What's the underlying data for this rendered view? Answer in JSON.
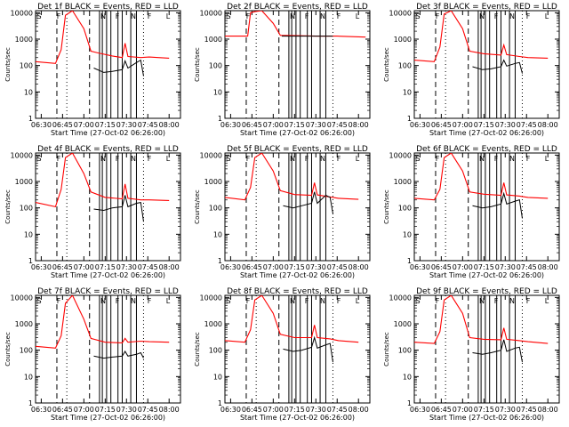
{
  "chart_data": {
    "type": "line",
    "xlabel": "Start Time (27-Oct-02 06:26:00)",
    "ylabel": "Counts/sec",
    "x_ticks": [
      "06:30",
      "06:45",
      "07:00",
      "07:15",
      "07:30",
      "07:45",
      "08:00"
    ],
    "y_ticks": [
      "1",
      "10",
      "100",
      "1000",
      "10000"
    ],
    "xlim": [
      "06:26",
      "08:08"
    ],
    "ylim": [
      1,
      12000
    ],
    "y_scale": "log",
    "panel_marks": [
      "S",
      "F",
      "N",
      "F",
      "N",
      "F",
      "L"
    ],
    "colors": {
      "events": "#000000",
      "lld": "#ff0000",
      "axis": "#000000",
      "background": "#ffffff"
    },
    "solid_markers": [
      "07:11",
      "07:13",
      "07:16",
      "07:19",
      "07:24",
      "07:27",
      "07:33",
      "07:37"
    ],
    "dashed_markers": [
      "06:41",
      "07:04"
    ],
    "dotted_markers": [
      "06:48",
      "07:42"
    ],
    "panels": [
      {
        "title": "Det 1f  BLACK = Events, RED = LLD",
        "lld": [
          [
            "06:26",
            140
          ],
          [
            "06:40",
            120
          ],
          [
            "06:44",
            400
          ],
          [
            "06:47",
            8000
          ],
          [
            "06:52",
            12000
          ],
          [
            "07:00",
            2500
          ],
          [
            "07:05",
            350
          ],
          [
            "07:10",
            300
          ],
          [
            "07:20",
            230
          ],
          [
            "07:27",
            200
          ],
          [
            "07:29",
            700
          ],
          [
            "07:31",
            220
          ],
          [
            "07:40",
            200
          ],
          [
            "07:46",
            210
          ],
          [
            "08:00",
            190
          ]
        ],
        "events": [
          [
            "07:07",
            80
          ],
          [
            "07:14",
            55
          ],
          [
            "07:20",
            60
          ],
          [
            "07:27",
            70
          ],
          [
            "07:29",
            150
          ],
          [
            "07:31",
            80
          ],
          [
            "07:37",
            130
          ],
          [
            "07:40",
            160
          ],
          [
            "07:42",
            40
          ]
        ]
      },
      {
        "title": "Det 2f  BLACK = Events, RED = LLD",
        "lld": [
          [
            "06:26",
            1300
          ],
          [
            "06:42",
            1300
          ],
          [
            "06:44",
            10000
          ],
          [
            "06:47",
            11000
          ],
          [
            "06:52",
            12000
          ],
          [
            "07:00",
            4000
          ],
          [
            "07:05",
            1400
          ],
          [
            "07:30",
            1300
          ],
          [
            "07:45",
            1300
          ],
          [
            "08:05",
            1200
          ]
        ],
        "events": [
          [
            "07:06",
            1300
          ],
          [
            "07:42",
            1300
          ]
        ]
      },
      {
        "title": "Det 3f  BLACK = Events, RED = LLD",
        "lld": [
          [
            "06:26",
            160
          ],
          [
            "06:40",
            140
          ],
          [
            "06:44",
            500
          ],
          [
            "06:47",
            9000
          ],
          [
            "06:52",
            12000
          ],
          [
            "07:00",
            2500
          ],
          [
            "07:05",
            350
          ],
          [
            "07:15",
            280
          ],
          [
            "07:27",
            250
          ],
          [
            "07:29",
            600
          ],
          [
            "07:31",
            260
          ],
          [
            "07:40",
            220
          ],
          [
            "07:46",
            200
          ],
          [
            "08:00",
            190
          ]
        ],
        "events": [
          [
            "07:07",
            90
          ],
          [
            "07:14",
            70
          ],
          [
            "07:20",
            75
          ],
          [
            "07:27",
            90
          ],
          [
            "07:29",
            160
          ],
          [
            "07:31",
            95
          ],
          [
            "07:37",
            120
          ],
          [
            "07:40",
            130
          ],
          [
            "07:42",
            50
          ]
        ]
      },
      {
        "title": "Det 4f  BLACK = Events, RED = LLD",
        "lld": [
          [
            "06:26",
            160
          ],
          [
            "06:40",
            110
          ],
          [
            "06:44",
            500
          ],
          [
            "06:47",
            8000
          ],
          [
            "06:52",
            12000
          ],
          [
            "07:00",
            2000
          ],
          [
            "07:05",
            400
          ],
          [
            "07:15",
            250
          ],
          [
            "07:27",
            220
          ],
          [
            "07:29",
            800
          ],
          [
            "07:31",
            230
          ],
          [
            "07:40",
            200
          ],
          [
            "07:46",
            200
          ],
          [
            "08:00",
            190
          ]
        ],
        "events": [
          [
            "07:07",
            90
          ],
          [
            "07:14",
            80
          ],
          [
            "07:20",
            100
          ],
          [
            "07:27",
            110
          ],
          [
            "07:29",
            300
          ],
          [
            "07:31",
            110
          ],
          [
            "07:37",
            150
          ],
          [
            "07:40",
            160
          ],
          [
            "07:42",
            30
          ]
        ]
      },
      {
        "title": "Det 5f  BLACK = Events, RED = LLD",
        "lld": [
          [
            "06:26",
            250
          ],
          [
            "06:40",
            200
          ],
          [
            "06:44",
            600
          ],
          [
            "06:47",
            8000
          ],
          [
            "06:52",
            12000
          ],
          [
            "07:00",
            2500
          ],
          [
            "07:05",
            450
          ],
          [
            "07:15",
            320
          ],
          [
            "07:27",
            300
          ],
          [
            "07:29",
            900
          ],
          [
            "07:31",
            310
          ],
          [
            "07:40",
            260
          ],
          [
            "07:46",
            230
          ],
          [
            "08:00",
            210
          ]
        ],
        "events": [
          [
            "07:07",
            120
          ],
          [
            "07:14",
            100
          ],
          [
            "07:20",
            120
          ],
          [
            "07:27",
            150
          ],
          [
            "07:29",
            400
          ],
          [
            "07:31",
            150
          ],
          [
            "07:37",
            300
          ],
          [
            "07:40",
            250
          ],
          [
            "07:42",
            60
          ]
        ]
      },
      {
        "title": "Det 6f  BLACK = Events, RED = LLD",
        "lld": [
          [
            "06:26",
            230
          ],
          [
            "06:40",
            200
          ],
          [
            "06:44",
            500
          ],
          [
            "06:47",
            8000
          ],
          [
            "06:52",
            12000
          ],
          [
            "07:00",
            2500
          ],
          [
            "07:05",
            400
          ],
          [
            "07:15",
            330
          ],
          [
            "07:27",
            300
          ],
          [
            "07:29",
            900
          ],
          [
            "07:31",
            310
          ],
          [
            "07:40",
            280
          ],
          [
            "07:46",
            250
          ],
          [
            "08:00",
            230
          ]
        ],
        "events": [
          [
            "07:07",
            120
          ],
          [
            "07:14",
            100
          ],
          [
            "07:20",
            110
          ],
          [
            "07:27",
            140
          ],
          [
            "07:29",
            350
          ],
          [
            "07:31",
            140
          ],
          [
            "07:37",
            180
          ],
          [
            "07:40",
            200
          ],
          [
            "07:42",
            40
          ]
        ]
      },
      {
        "title": "Det 7f  BLACK = Events, RED = LLD",
        "lld": [
          [
            "06:26",
            140
          ],
          [
            "06:40",
            120
          ],
          [
            "06:44",
            350
          ],
          [
            "06:47",
            6000
          ],
          [
            "06:52",
            12000
          ],
          [
            "07:00",
            1500
          ],
          [
            "07:05",
            280
          ],
          [
            "07:15",
            200
          ],
          [
            "07:27",
            190
          ],
          [
            "07:29",
            280
          ],
          [
            "07:31",
            200
          ],
          [
            "07:40",
            220
          ],
          [
            "07:46",
            210
          ],
          [
            "08:00",
            200
          ]
        ],
        "events": [
          [
            "07:07",
            60
          ],
          [
            "07:14",
            50
          ],
          [
            "07:20",
            55
          ],
          [
            "07:27",
            60
          ],
          [
            "07:29",
            90
          ],
          [
            "07:31",
            60
          ],
          [
            "07:37",
            70
          ],
          [
            "07:40",
            80
          ],
          [
            "07:42",
            50
          ]
        ]
      },
      {
        "title": "Det 8f  BLACK = Events, RED = LLD",
        "lld": [
          [
            "06:26",
            230
          ],
          [
            "06:40",
            200
          ],
          [
            "06:44",
            600
          ],
          [
            "06:47",
            8000
          ],
          [
            "06:52",
            12000
          ],
          [
            "07:00",
            2500
          ],
          [
            "07:05",
            400
          ],
          [
            "07:15",
            300
          ],
          [
            "07:27",
            300
          ],
          [
            "07:29",
            900
          ],
          [
            "07:31",
            300
          ],
          [
            "07:40",
            270
          ],
          [
            "07:46",
            230
          ],
          [
            "08:00",
            200
          ]
        ],
        "events": [
          [
            "07:07",
            110
          ],
          [
            "07:14",
            90
          ],
          [
            "07:20",
            100
          ],
          [
            "07:27",
            130
          ],
          [
            "07:29",
            300
          ],
          [
            "07:31",
            120
          ],
          [
            "07:37",
            160
          ],
          [
            "07:40",
            180
          ],
          [
            "07:42",
            35
          ]
        ]
      },
      {
        "title": "Det 9f  BLACK = Events, RED = LLD",
        "lld": [
          [
            "06:26",
            200
          ],
          [
            "06:40",
            180
          ],
          [
            "06:44",
            500
          ],
          [
            "06:47",
            8000
          ],
          [
            "06:52",
            12000
          ],
          [
            "07:00",
            2500
          ],
          [
            "07:05",
            300
          ],
          [
            "07:15",
            260
          ],
          [
            "07:27",
            250
          ],
          [
            "07:29",
            700
          ],
          [
            "07:31",
            260
          ],
          [
            "07:40",
            230
          ],
          [
            "07:46",
            210
          ],
          [
            "08:00",
            180
          ]
        ],
        "events": [
          [
            "07:07",
            80
          ],
          [
            "07:14",
            70
          ],
          [
            "07:20",
            80
          ],
          [
            "07:27",
            100
          ],
          [
            "07:29",
            250
          ],
          [
            "07:31",
            90
          ],
          [
            "07:37",
            120
          ],
          [
            "07:40",
            130
          ],
          [
            "07:42",
            35
          ]
        ]
      }
    ]
  }
}
